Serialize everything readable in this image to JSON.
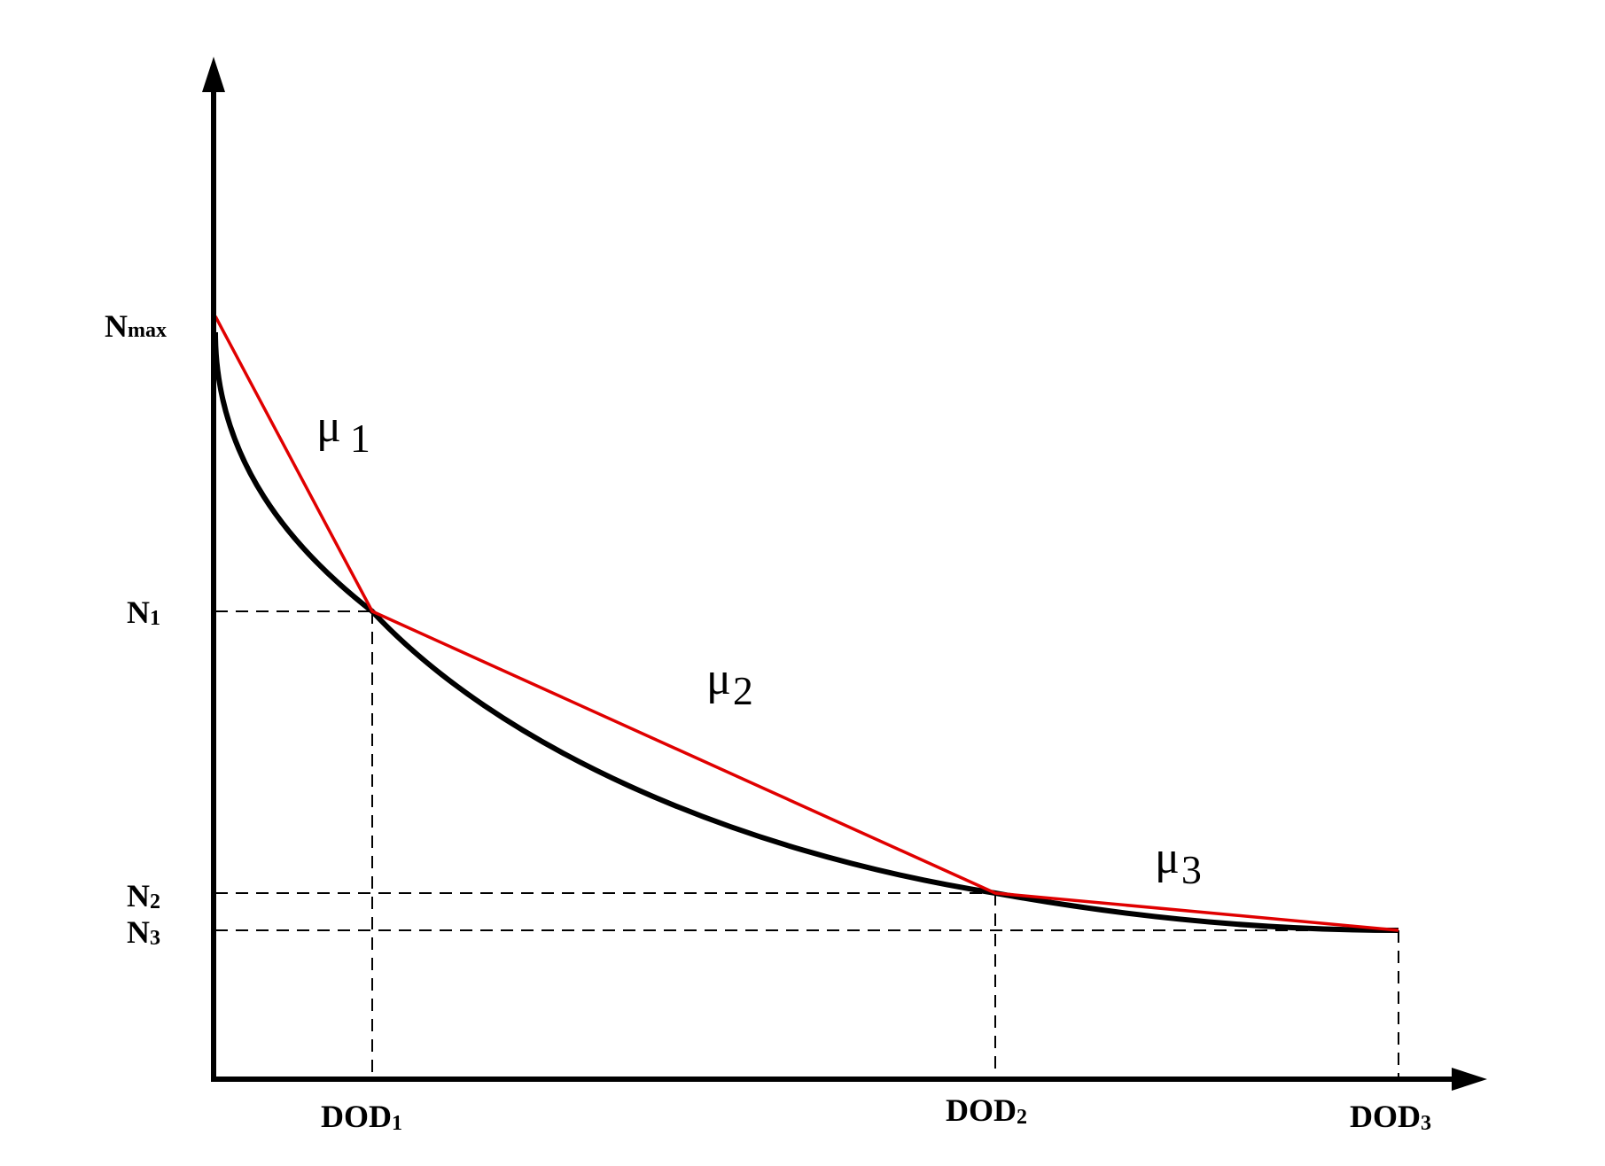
{
  "colors": {
    "axis": "#000000",
    "curve": "#000000",
    "approximation": "#e00000",
    "guides": "#000000",
    "background": "#ffffff"
  },
  "y_labels": {
    "nmax": {
      "base": "N",
      "sub": "max"
    },
    "n1": {
      "base": "N",
      "sub": "1"
    },
    "n2": {
      "base": "N",
      "sub": "2"
    },
    "n3": {
      "base": "N",
      "sub": "3"
    }
  },
  "x_labels": {
    "dod1": {
      "base": "DOD",
      "sub": "1"
    },
    "dod2": {
      "base": "DOD",
      "sub": "2"
    },
    "dod3": {
      "base": "DOD",
      "sub": "3"
    }
  },
  "slopes": {
    "mu1": {
      "symbol": "μ",
      "sub": "1"
    },
    "mu2": {
      "symbol": "μ",
      "sub": "2"
    },
    "mu3": {
      "symbol": "μ",
      "sub": "3"
    }
  }
}
